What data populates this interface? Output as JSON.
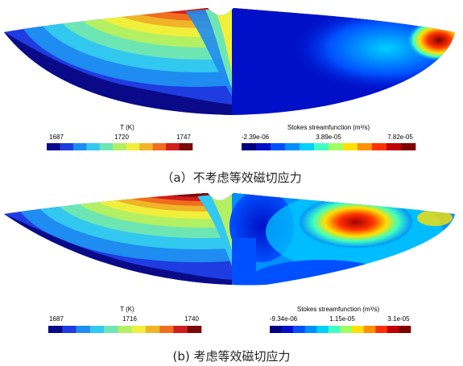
{
  "figures": [
    {
      "caption": "（a）不考虑等效磁切应力",
      "left_colorbar": {
        "title": "T (K)",
        "ticks": [
          "1687",
          "1720",
          "1747"
        ],
        "colors": [
          "#0a0a88",
          "#1e3ce0",
          "#1e8cf0",
          "#32c8f0",
          "#6ee6b4",
          "#b4f064",
          "#f0f03c",
          "#f0b428",
          "#f06e1e",
          "#d21e1e",
          "#780a0a"
        ]
      },
      "right_colorbar": {
        "title": "Stokes streamfunction (m³/s)",
        "ticks": [
          "-2.39e-06",
          "3.89e-05",
          "7.82e-05"
        ],
        "colors": [
          "#000080",
          "#0010c8",
          "#0050ff",
          "#0090ff",
          "#00d0ff",
          "#40ffc0",
          "#a0ff60",
          "#ffe000",
          "#ff9000",
          "#ff3000",
          "#c00000",
          "#800000"
        ]
      }
    },
    {
      "caption": "(b) 考虑等效磁切应力",
      "left_colorbar": {
        "title": "T (K)",
        "ticks": [
          "1687",
          "1716",
          "1740"
        ],
        "colors": [
          "#0a0a88",
          "#1e3ce0",
          "#1e8cf0",
          "#32c8f0",
          "#6ee6b4",
          "#b4f064",
          "#f0f03c",
          "#f0b428",
          "#f06e1e",
          "#d21e1e",
          "#780a0a"
        ]
      },
      "right_colorbar": {
        "title": "Stokes streamfunction (m³/s)",
        "ticks": [
          "-9.34e-06",
          "1.15e-05",
          "3.1e-05"
        ],
        "colors": [
          "#000080",
          "#0010c8",
          "#0050ff",
          "#0090ff",
          "#00d0ff",
          "#40ffc0",
          "#a0ff60",
          "#ffe000",
          "#ff9000",
          "#ff3000",
          "#c00000",
          "#800000"
        ]
      }
    }
  ]
}
